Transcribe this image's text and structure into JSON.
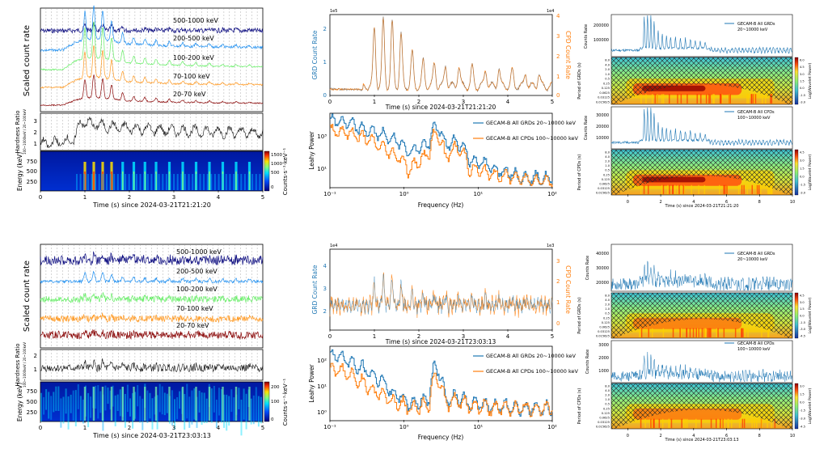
{
  "colors": {
    "band_500_1000": "#0d0d80",
    "band_200_500": "#1f8ff0",
    "band_100_200": "#66ee66",
    "band_70_100": "#ff9922",
    "band_20_70": "#8b0a0a",
    "hardness": "#111111",
    "grd": "#1f77b4",
    "cpd": "#ff7f0e",
    "cone": "#1a1a1a"
  },
  "icons": [
    "colorbar-icon",
    "hatch-cone-icon"
  ],
  "chart_data": [
    {
      "id": "A1",
      "type": "line",
      "panel": "top-left",
      "ylabel": "Scaled count rate",
      "band_labels": [
        "500-1000 keV",
        "200-500 keV",
        "100-200 keV",
        "70-100 keV",
        "20-70 keV"
      ],
      "xlim": [
        0,
        5
      ],
      "series": [
        {
          "name": "500-1000 keV",
          "x": [
            0,
            0.5,
            0.8,
            1.0,
            1.2,
            1.6,
            2.0,
            3.0,
            4.0,
            5.0
          ],
          "values": [
            1.0,
            1.0,
            1.15,
            1.25,
            1.35,
            1.2,
            1.15,
            1.1,
            1.05,
            1.0
          ]
        },
        {
          "name": "200-500 keV",
          "x": [
            0,
            0.5,
            0.8,
            1.0,
            1.2,
            1.6,
            2.0,
            3.0,
            4.0,
            5.0
          ],
          "values": [
            0,
            0,
            2.0,
            2.6,
            2.8,
            2.2,
            1.5,
            1.0,
            0.8,
            0.7
          ]
        },
        {
          "name": "100-200 keV",
          "x": [
            0,
            0.5,
            0.8,
            1.0,
            1.2,
            1.6,
            2.0,
            3.0,
            4.0,
            5.0
          ],
          "values": [
            0,
            0,
            2.2,
            2.8,
            3.0,
            2.4,
            1.6,
            1.1,
            0.8,
            0.7
          ]
        },
        {
          "name": "70-100 keV",
          "x": [
            0,
            0.5,
            0.8,
            1.0,
            1.2,
            1.6,
            2.0,
            3.0,
            4.0,
            5.0
          ],
          "values": [
            0,
            0,
            2.0,
            2.7,
            2.9,
            2.3,
            1.5,
            1.0,
            0.8,
            0.7
          ]
        },
        {
          "name": "20-70 keV",
          "x": [
            0,
            0.5,
            0.8,
            1.0,
            1.2,
            1.6,
            2.0,
            3.0,
            4.0,
            5.0
          ],
          "values": [
            0,
            0,
            1.6,
            2.2,
            2.4,
            1.9,
            1.3,
            0.9,
            0.7,
            0.6
          ]
        }
      ]
    },
    {
      "id": "A2",
      "type": "line",
      "panel": "top-left-hardness",
      "ylabel": "Hardness Ratio",
      "ylabel_sub": "100~1000keV / 20~100keV",
      "yticks": [
        "1",
        "2",
        "3"
      ],
      "ylim": [
        0.5,
        3.5
      ],
      "series": [
        {
          "name": "hardness",
          "x": [
            0,
            0.5,
            0.75,
            0.9,
            1.2,
            1.6,
            2.0,
            3.0,
            4.0,
            5.0
          ],
          "values": [
            1.0,
            1.2,
            1.3,
            2.8,
            2.6,
            2.4,
            2.3,
            2.1,
            2.0,
            1.9
          ]
        }
      ]
    },
    {
      "id": "A3",
      "type": "heatmap",
      "panel": "top-left-spectrogram",
      "ylabel": "Energy (keV)",
      "yticks": [
        "250",
        "500",
        "750"
      ],
      "xlabel": "Time (s) since 2024-03-21T21:21:20",
      "xticks": [
        "0",
        "1",
        "2",
        "3",
        "4",
        "5"
      ],
      "colorbar_label": "Counts·s⁻¹·keV⁻¹",
      "colorbar_ticks": [
        "1500",
        "1000",
        "500",
        "0"
      ]
    },
    {
      "id": "B1",
      "type": "line",
      "panel": "top-middle",
      "ylabel_left": "GRD Count Rate",
      "ylabel_right": "CPD Count Rate",
      "yticks_left": [
        "0",
        "1",
        "2"
      ],
      "yticks_right": [
        "0",
        "1",
        "2",
        "3",
        "4"
      ],
      "exponent_left": "1e5",
      "exponent_right": "1e4",
      "xlim": [
        0,
        5
      ],
      "xlabel": "Time (s) since 2024-03-21T21:21:20",
      "xticks": [
        "0",
        "1",
        "2",
        "3",
        "4",
        "5"
      ],
      "peaks_x": [
        1.0,
        1.2,
        1.4,
        1.6,
        1.85,
        2.1,
        2.35,
        2.6,
        2.9,
        3.2,
        3.5,
        3.8,
        4.1,
        4.4,
        4.7
      ],
      "peaks_y": [
        2.3,
        2.6,
        2.5,
        2.0,
        1.3,
        1.0,
        0.9,
        0.85,
        0.8,
        0.75,
        0.7,
        0.7,
        0.6,
        0.55,
        0.5
      ]
    },
    {
      "id": "B2",
      "type": "line",
      "panel": "top-middle-power",
      "ylabel": "Leahy Power",
      "xlabel": "Frequency (Hz)",
      "xticks": [
        "10⁻¹",
        "10⁰",
        "10¹",
        "10²"
      ],
      "yticks": [
        "10¹",
        "10³"
      ],
      "legend": [
        "GECAM-B All GRDs 20~10000 keV",
        "GECAM-B All CPDs 100~10000 keV"
      ],
      "legend_placement": "top-right",
      "series": [
        {
          "name": "GECAM-B All GRDs 20~10000 keV",
          "x": [
            0.1,
            0.3,
            0.6,
            1.0,
            2.0,
            4.5,
            5.5,
            8.0,
            12.0,
            20.0,
            50.0,
            150.0,
            500.0
          ],
          "values": [
            3000,
            1200,
            700,
            400,
            90,
            250,
            1500,
            200,
            300,
            40,
            15,
            6,
            5
          ]
        },
        {
          "name": "GECAM-B All CPDs 100~10000 keV",
          "x": [
            0.1,
            0.3,
            0.6,
            1.0,
            2.0,
            4.5,
            5.5,
            8.0,
            12.0,
            20.0,
            50.0,
            150.0,
            500.0
          ],
          "values": [
            1000,
            500,
            200,
            80,
            10,
            80,
            700,
            40,
            150,
            15,
            8,
            5,
            4
          ]
        }
      ]
    },
    {
      "id": "C1",
      "type": "heatmap",
      "panel": "top-right-grd",
      "legend": [
        "GECAM-B All GRDs",
        "20~10000 keV"
      ],
      "ylabel_top": "Counts Rate",
      "yticks_top": [
        "100000",
        "200000"
      ],
      "ylabel_bottom": "Period of GRDs (s)",
      "period_ticks": [
        "8.0",
        "4.0",
        "2.0",
        "1.0",
        "0.5",
        "0.25",
        "0.125",
        "0.0625",
        "0.03125",
        "0.015625"
      ],
      "colorbar_label": "Log(Wavelet Power)",
      "colorbar_ticks": [
        "6.0",
        "4.5",
        "3.0",
        "1.5",
        "0.0",
        "-1.5",
        "-3.0"
      ]
    },
    {
      "id": "C2",
      "type": "heatmap",
      "panel": "top-right-cpd",
      "legend": [
        "GECAM-B All CPDs",
        "100~10000 keV"
      ],
      "ylabel_top": "Counts Rate",
      "yticks_top": [
        "10000",
        "20000",
        "30000"
      ],
      "ylabel_bottom": "Period of CPDs (s)",
      "period_ticks": [
        "8.0",
        "4.0",
        "2.0",
        "1.0",
        "0.5",
        "0.25",
        "0.125",
        "0.0625",
        "0.03125",
        "0.015625"
      ],
      "colorbar_label": "Log(Wavelet Power)",
      "colorbar_ticks": [
        "4.5",
        "3.0",
        "1.5",
        "0.0",
        "-1.5",
        "-3.0"
      ],
      "xlabel": "Time (s) since 2024-03-21T21:21:20",
      "xticks": [
        "0",
        "2",
        "4",
        "6",
        "8",
        "10"
      ]
    },
    {
      "id": "D1",
      "type": "line",
      "panel": "bottom-left",
      "ylabel": "Scaled count rate",
      "band_labels": [
        "500-1000 keV",
        "200-500 keV",
        "100-200 keV",
        "70-100 keV",
        "20-70 keV"
      ],
      "xlim": [
        0,
        5
      ]
    },
    {
      "id": "D2",
      "type": "line",
      "panel": "bottom-left-hardness",
      "ylabel": "Hardness Ratio",
      "ylabel_sub": "100~1000keV / 20~100keV",
      "yticks": [
        "1",
        "2"
      ]
    },
    {
      "id": "D3",
      "type": "heatmap",
      "panel": "bottom-left-spectrogram",
      "ylabel": "Energy (keV)",
      "yticks": [
        "250",
        "500",
        "750"
      ],
      "xlabel": "Time (s) since 2024-03-21T23:03:13",
      "xticks": [
        "0",
        "1",
        "2",
        "3",
        "4",
        "5"
      ],
      "colorbar_label": "Counts·s⁻¹·keV⁻¹",
      "colorbar_ticks": [
        "200",
        "100",
        "0"
      ]
    },
    {
      "id": "E1",
      "type": "line",
      "panel": "bottom-middle",
      "ylabel_left": "GRD Count Rate",
      "ylabel_right": "CPD Count Rate",
      "yticks_left": [
        "2",
        "3",
        "4"
      ],
      "yticks_right": [
        "0",
        "1",
        "2",
        "3"
      ],
      "exponent_left": "1e4",
      "exponent_right": "1e3",
      "xlabel": "Time (s) since 2024-03-21T23:03:13",
      "xticks": [
        "0",
        "1",
        "2",
        "3",
        "4",
        "5"
      ]
    },
    {
      "id": "E2",
      "type": "line",
      "panel": "bottom-middle-power",
      "ylabel": "Leahy Power",
      "xlabel": "Frequency (Hz)",
      "xticks": [
        "10⁻¹",
        "10⁰",
        "10¹",
        "10²"
      ],
      "yticks": [
        "10⁰",
        "10¹",
        "10²"
      ],
      "legend": [
        "GECAM-B All GRDs 20~10000 keV",
        "GECAM-B All CPDs 100~10000 keV"
      ],
      "legend_placement": "top-right",
      "series": [
        {
          "name": "GECAM-B All GRDs 20~10000 keV",
          "x": [
            0.1,
            0.25,
            0.5,
            1.0,
            2.0,
            4.5,
            5.5,
            8.0,
            12.0,
            20.0,
            50.0,
            150.0,
            500.0
          ],
          "values": [
            300,
            100,
            40,
            8,
            3,
            5,
            90,
            4,
            6,
            3,
            2.5,
            2,
            2
          ]
        },
        {
          "name": "GECAM-B All CPDs 100~10000 keV",
          "x": [
            0.1,
            0.25,
            0.5,
            1.0,
            2.0,
            4.5,
            5.5,
            8.0,
            12.0,
            20.0,
            50.0,
            150.0,
            500.0
          ],
          "values": [
            80,
            30,
            10,
            4,
            2,
            3,
            40,
            3,
            4,
            2.5,
            2,
            2,
            2
          ]
        }
      ]
    },
    {
      "id": "F1",
      "type": "heatmap",
      "panel": "bottom-right-grd",
      "legend": [
        "GECAM-B All GRDs",
        "20~10000 keV"
      ],
      "ylabel_top": "Counts Rate",
      "yticks_top": [
        "20000",
        "30000",
        "40000"
      ],
      "ylabel_bottom": "Period of GRDs (s)",
      "period_ticks": [
        "8.0",
        "4.0",
        "2.0",
        "1.0",
        "0.5",
        "0.25",
        "0.125",
        "0.0625",
        "0.03125",
        "0.015625"
      ],
      "colorbar_label": "Log(Wavelet Power)",
      "colorbar_ticks": [
        "4.5",
        "3.0",
        "1.5",
        "0.0",
        "-1.5",
        "-3.0",
        "-4.5"
      ]
    },
    {
      "id": "F2",
      "type": "heatmap",
      "panel": "bottom-right-cpd",
      "legend": [
        "GECAM-B All CPDs",
        "100~10000 keV"
      ],
      "ylabel_top": "Counts Rate",
      "yticks_top": [
        "1000",
        "2000",
        "3000"
      ],
      "ylabel_bottom": "Period of CPDs (s)",
      "period_ticks": [
        "8.0",
        "4.0",
        "2.0",
        "1.0",
        "0.5",
        "0.25",
        "0.125",
        "0.0625",
        "0.03125",
        "0.015625"
      ],
      "colorbar_label": "Log(Wavelet Power)",
      "colorbar_ticks": [
        "3.0",
        "1.5",
        "0.0",
        "-1.5",
        "-3.0",
        "-4.5"
      ],
      "xlabel": "Time (s) since 2024-03-21T23:03:13",
      "xticks": [
        "0",
        "2",
        "4",
        "6",
        "8",
        "10"
      ]
    }
  ]
}
